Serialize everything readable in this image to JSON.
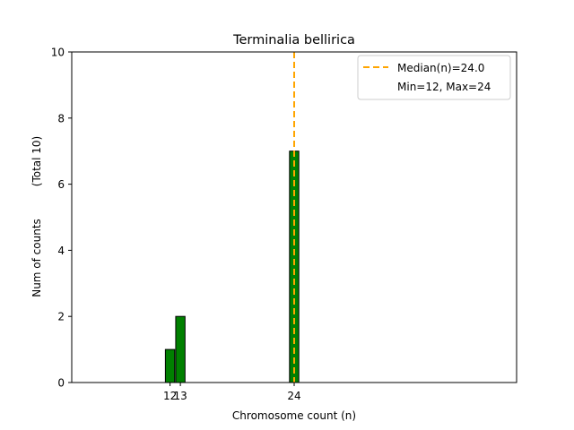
{
  "chart_data": {
    "type": "bar",
    "title": "Terminalia bellirica",
    "xlabel": "Chromosome count (n)",
    "ylabel_lines": [
      "Num of counts",
      "(Total 10)"
    ],
    "xlim": [
      2.5,
      45.5
    ],
    "ylim": [
      0,
      10
    ],
    "bar_width": 0.9,
    "bars": [
      {
        "x": 12,
        "count": 1
      },
      {
        "x": 13,
        "count": 2
      },
      {
        "x": 24,
        "count": 7
      }
    ],
    "zero_span": [
      2.5,
      27
    ],
    "x_ticks": [
      12,
      13,
      24
    ],
    "y_ticks": [
      0,
      2,
      4,
      6,
      8,
      10
    ],
    "median": 24.0,
    "legend": {
      "placement": "top-right",
      "entries": [
        "Median(n)=24.0",
        "Min=12, Max=24"
      ]
    },
    "colors": {
      "bar_fill": "#008000",
      "bar_edge": "#000000",
      "median_line": "#FFA500"
    }
  }
}
